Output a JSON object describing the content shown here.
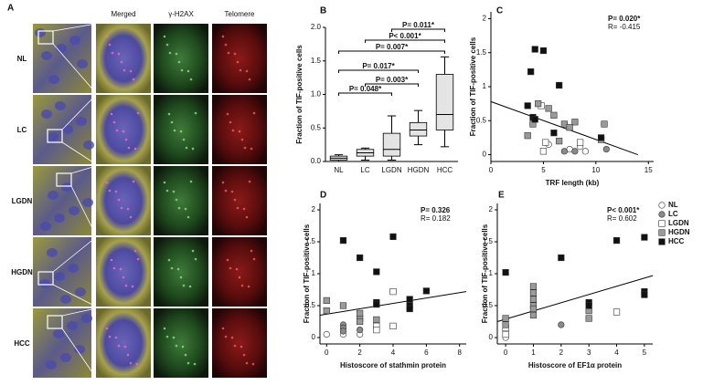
{
  "panel_a": {
    "label": "A",
    "columns": [
      "Merged",
      "γ-H2AX",
      "Telomere"
    ],
    "rows": [
      "NL",
      "LC",
      "LGDN",
      "HGDN",
      "HCC"
    ]
  },
  "chart_data": [
    {
      "type": "box",
      "panel": "B",
      "y_label": "Fraction of TIF-positive cells",
      "categories": [
        "NL",
        "LC",
        "LGDN",
        "HGDN",
        "HCC"
      ],
      "boxes": [
        {
          "min": 0.0,
          "q1": 0.02,
          "median": 0.05,
          "q3": 0.08,
          "max": 0.1
        },
        {
          "min": 0.02,
          "q1": 0.08,
          "median": 0.13,
          "q3": 0.18,
          "max": 0.2
        },
        {
          "min": 0.02,
          "q1": 0.08,
          "median": 0.18,
          "q3": 0.42,
          "max": 0.68
        },
        {
          "min": 0.25,
          "q1": 0.38,
          "median": 0.47,
          "q3": 0.58,
          "max": 0.76
        },
        {
          "min": 0.22,
          "q1": 0.47,
          "median": 0.7,
          "q3": 1.3,
          "max": 1.56
        }
      ],
      "box_color": "#e4e4e4",
      "ylim": [
        0,
        2
      ],
      "yticks": [
        {
          "value": 0,
          "label": "0.0"
        },
        0.5,
        {
          "value": 1,
          "label": "1.0"
        },
        1.5,
        {
          "value": 2,
          "label": "2.0"
        }
      ],
      "annotations": [
        "P= 0.011*",
        "P< 0.001*",
        "P= 0.007*",
        "P= 0.017*",
        "P= 0.003*",
        "P= 0.048*"
      ]
    },
    {
      "type": "scatter",
      "panel": "C",
      "x_label": "TRF length (kb)",
      "y_label": "Fraction of TIF-positive cells",
      "xlim": [
        0,
        15.5
      ],
      "xticks": [
        0,
        5,
        10,
        15
      ],
      "ylim": [
        -0.1,
        2.1
      ],
      "yticks": [
        0,
        0.5,
        1,
        1.5,
        2
      ],
      "annotations": [
        "P= 0.020*",
        "R= -0.415"
      ],
      "trend": {
        "x": [
          0,
          14
        ],
        "y": [
          0.78,
          0
        ]
      },
      "series": [
        {
          "color": "#ffffff",
          "marker": "circle",
          "x": [
            5.5,
            7.5,
            9,
            8.5
          ],
          "y": [
            0.15,
            0.08,
            0.05,
            0.12
          ]
        },
        {
          "color": "#8a8a8a",
          "marker": "circle",
          "x": [
            7,
            8,
            11
          ],
          "y": [
            0.05,
            0.05,
            0.08
          ]
        },
        {
          "color": "#ffffff",
          "marker": "square",
          "x": [
            4.8,
            5,
            5.2,
            8.5
          ],
          "y": [
            0.72,
            0.05,
            0.18,
            0.18
          ]
        },
        {
          "color": "#9a9a9a",
          "marker": "square",
          "x": [
            4.5,
            5.5,
            6,
            8,
            7,
            4,
            3.5,
            10.8,
            7.5,
            6.5,
            10.5
          ],
          "y": [
            0.75,
            0.68,
            0.58,
            0.48,
            0.45,
            0.45,
            0.28,
            0.45,
            0.4,
            0.2,
            0.22
          ]
        },
        {
          "color": "#111111",
          "marker": "square",
          "x": [
            4.2,
            5,
            3.8,
            3.5,
            4,
            4.2,
            6.5,
            6,
            10.5
          ],
          "y": [
            1.55,
            1.53,
            1.22,
            0.72,
            0.55,
            0.52,
            1.02,
            0.32,
            0.25
          ]
        }
      ]
    },
    {
      "type": "scatter",
      "panel": "D",
      "x_label": "Histoscore of stathmin protein",
      "y_label": "Fraction of TIF-positive cells",
      "xlim": [
        -0.4,
        8.4
      ],
      "xticks": [
        0,
        2,
        4,
        6,
        8
      ],
      "ylim": [
        -0.1,
        2.1
      ],
      "yticks": [
        0,
        0.5,
        1,
        1.5,
        2
      ],
      "annotations": [
        "P= 0.326",
        "R= 0.182"
      ],
      "trend": {
        "x": [
          -0.4,
          8.4
        ],
        "y": [
          0.35,
          0.72
        ]
      },
      "series": [
        {
          "color": "#ffffff",
          "marker": "circle",
          "x": [
            0,
            1,
            2
          ],
          "y": [
            0.05,
            0.05,
            0.05
          ]
        },
        {
          "color": "#8a8a8a",
          "marker": "circle",
          "x": [
            1,
            1,
            1,
            2
          ],
          "y": [
            0.2,
            0.15,
            0.1,
            0.12
          ]
        },
        {
          "color": "#ffffff",
          "marker": "square",
          "x": [
            3,
            3,
            4,
            4
          ],
          "y": [
            0.18,
            0.12,
            0.72,
            0.18
          ]
        },
        {
          "color": "#9a9a9a",
          "marker": "square",
          "x": [
            0,
            0,
            1,
            2,
            2,
            2,
            3
          ],
          "y": [
            0.58,
            0.42,
            0.5,
            0.3,
            0.25,
            0.38,
            0.28
          ]
        },
        {
          "color": "#111111",
          "marker": "square",
          "x": [
            1,
            2,
            3,
            4,
            3,
            3,
            6,
            5,
            5,
            5
          ],
          "y": [
            1.52,
            1.25,
            1.03,
            1.58,
            0.55,
            0.52,
            0.73,
            0.5,
            0.45,
            0.6
          ]
        }
      ]
    },
    {
      "type": "scatter",
      "panel": "E",
      "x_label": "Histoscore of EF1α protein",
      "y_label": "Fraction of TIF-positive cells",
      "xlim": [
        -0.3,
        5.3
      ],
      "xticks": [
        0,
        1,
        2,
        3,
        4,
        5
      ],
      "ylim": [
        -0.1,
        2.1
      ],
      "yticks": [
        0,
        0.5,
        1,
        1.5,
        2
      ],
      "annotations": [
        "P< 0.001*",
        "R= 0.602"
      ],
      "trend": {
        "x": [
          -0.3,
          5.3
        ],
        "y": [
          0.25,
          0.97
        ]
      },
      "legend": "right",
      "series": [
        {
          "name": "NL",
          "color": "#ffffff",
          "marker": "circle",
          "x": [
            0,
            0
          ],
          "y": [
            0.0,
            0.05
          ]
        },
        {
          "name": "LC",
          "color": "#8a8a8a",
          "marker": "circle",
          "x": [
            0,
            2
          ],
          "y": [
            0.1,
            0.2
          ]
        },
        {
          "name": "LGDN",
          "color": "#ffffff",
          "marker": "square",
          "x": [
            0,
            0,
            4
          ],
          "y": [
            0.05,
            0.15,
            0.4
          ]
        },
        {
          "name": "HGDN",
          "color": "#9a9a9a",
          "marker": "square",
          "x": [
            0,
            0,
            1,
            1,
            1,
            1,
            1,
            1,
            3,
            3
          ],
          "y": [
            0.3,
            0.2,
            0.8,
            0.7,
            0.6,
            0.5,
            0.45,
            0.35,
            0.42,
            0.3
          ]
        },
        {
          "name": "HCC",
          "color": "#111111",
          "marker": "square",
          "x": [
            0,
            2,
            4,
            5,
            5,
            5,
            3,
            3
          ],
          "y": [
            1.02,
            1.25,
            1.52,
            1.57,
            0.72,
            0.67,
            0.55,
            0.5
          ]
        }
      ]
    }
  ]
}
